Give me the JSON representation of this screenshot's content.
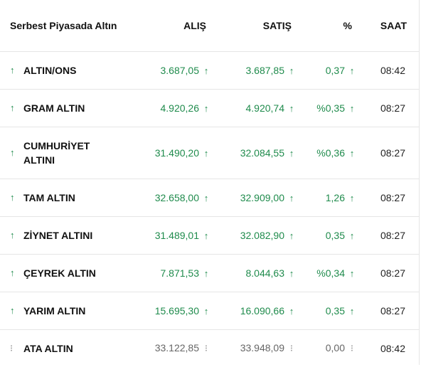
{
  "header": {
    "title": "Serbest Piyasada Altın",
    "buy": "ALIŞ",
    "sell": "SATIŞ",
    "percent": "%",
    "time": "SAAT"
  },
  "colors": {
    "up": "#1f8b4c",
    "neutral": "#888888",
    "border": "#e6e6e6"
  },
  "rows": [
    {
      "name": "ALTIN/ONS",
      "buy": "3.687,05",
      "sell": "3.687,85",
      "pct": "0,37",
      "time": "08:42",
      "trend": "up",
      "icon": "arrow-up-icon"
    },
    {
      "name": "GRAM ALTIN",
      "buy": "4.920,26",
      "sell": "4.920,74",
      "pct": "%0,35",
      "time": "08:27",
      "trend": "up",
      "icon": "arrow-up-icon"
    },
    {
      "name": "CUMHURİYET ALTINI",
      "buy": "31.490,20",
      "sell": "32.084,55",
      "pct": "%0,36",
      "time": "08:27",
      "trend": "up",
      "icon": "arrow-up-icon"
    },
    {
      "name": "TAM ALTIN",
      "buy": "32.658,00",
      "sell": "32.909,00",
      "pct": "1,26",
      "time": "08:27",
      "trend": "up",
      "icon": "arrow-up-icon"
    },
    {
      "name": "ZİYNET ALTINI",
      "buy": "31.489,01",
      "sell": "32.082,90",
      "pct": "0,35",
      "time": "08:27",
      "trend": "up",
      "icon": "arrow-up-icon"
    },
    {
      "name": "ÇEYREK ALTIN",
      "buy": "7.871,53",
      "sell": "8.044,63",
      "pct": "%0,34",
      "time": "08:27",
      "trend": "up",
      "icon": "arrow-up-icon"
    },
    {
      "name": "YARIM ALTIN",
      "buy": "15.695,30",
      "sell": "16.090,66",
      "pct": "0,35",
      "time": "08:27",
      "trend": "up",
      "icon": "arrow-up-icon"
    },
    {
      "name": "ATA ALTIN",
      "buy": "33.122,85",
      "sell": "33.948,09",
      "pct": "0,00",
      "time": "08:42",
      "trend": "neutral",
      "icon": "info-dots-icon"
    }
  ]
}
